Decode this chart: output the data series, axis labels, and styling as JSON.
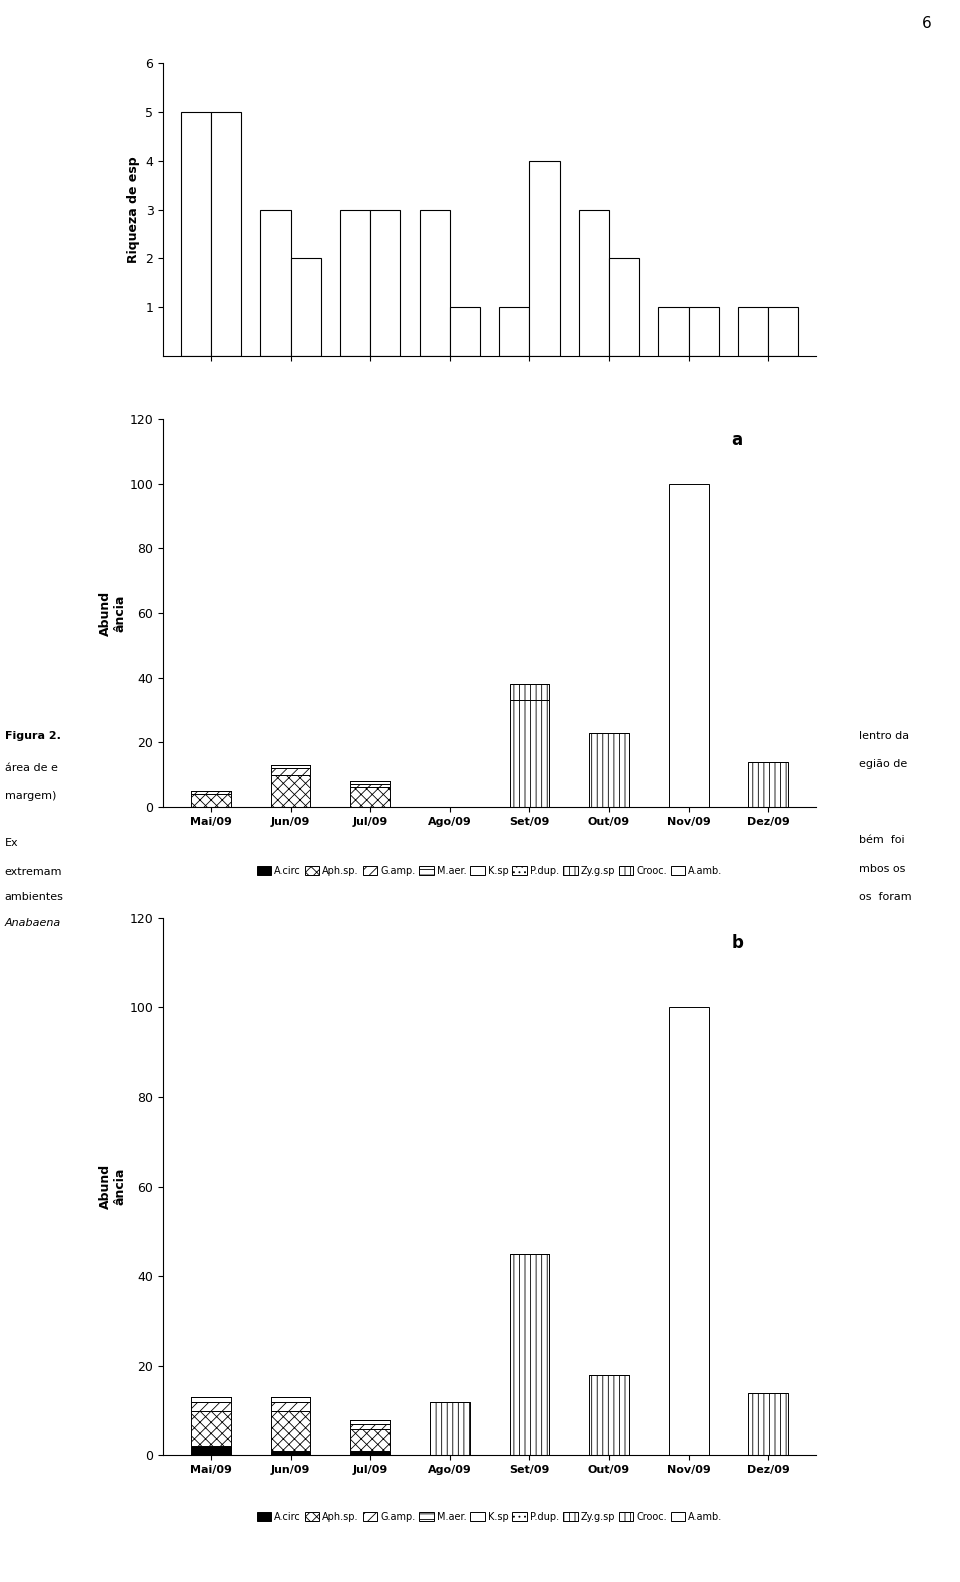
{
  "months": [
    "Mai/09",
    "Jun/09",
    "Jul/09",
    "Ago/09",
    "Set/09",
    "Out/09",
    "Nov/09",
    "Dez/09"
  ],
  "richness_hatched": [
    5,
    3,
    3,
    3,
    1,
    3,
    1,
    1
  ],
  "richness_plain": [
    5,
    2,
    3,
    1,
    4,
    2,
    1,
    1
  ],
  "abund_a": {
    "A.circ": [
      0,
      0,
      0,
      0,
      0,
      0,
      0,
      0
    ],
    "Aph.sp": [
      4,
      10,
      6,
      0,
      0,
      0,
      0,
      0
    ],
    "G.amp": [
      1,
      2,
      1,
      0,
      0,
      0,
      0,
      0
    ],
    "M.aer": [
      0,
      1,
      1,
      0,
      0,
      0,
      0,
      0
    ],
    "K.sp": [
      0,
      0,
      0,
      0,
      0,
      0,
      0,
      0
    ],
    "P.dup": [
      0,
      0,
      0,
      0,
      0,
      0,
      0,
      0
    ],
    "Zy.g.sp": [
      0,
      0,
      0,
      0,
      33,
      0,
      0,
      0
    ],
    "Crooc": [
      0,
      0,
      0,
      0,
      5,
      23,
      0,
      14
    ],
    "A.amb": [
      0,
      0,
      0,
      0,
      0,
      0,
      100,
      0
    ]
  },
  "abund_b": {
    "A.circ": [
      2,
      1,
      1,
      0,
      0,
      0,
      0,
      0
    ],
    "Aph.sp": [
      8,
      9,
      5,
      0,
      0,
      0,
      0,
      0
    ],
    "G.amp": [
      2,
      2,
      1,
      0,
      0,
      0,
      0,
      0
    ],
    "M.aer": [
      1,
      1,
      1,
      0,
      0,
      0,
      0,
      0
    ],
    "K.sp": [
      0,
      0,
      0,
      0,
      0,
      0,
      0,
      0
    ],
    "P.dup": [
      0,
      0,
      0,
      0,
      0,
      0,
      0,
      0
    ],
    "Zy.g.sp": [
      0,
      0,
      0,
      0,
      45,
      18,
      0,
      0
    ],
    "Crooc": [
      0,
      0,
      0,
      12,
      0,
      0,
      0,
      14
    ],
    "A.amb": [
      0,
      0,
      0,
      0,
      0,
      0,
      100,
      0
    ]
  },
  "ylabel_richness": "Riqueza de esp",
  "ylabel_abund_top": "Abund",
  "ylabel_abund_bot": "ância",
  "panel_a_label": "a",
  "panel_b_label": "b",
  "richness_ylim": [
    0,
    6
  ],
  "richness_yticks": [
    1,
    2,
    3,
    4,
    5,
    6
  ],
  "abund_ylim": [
    0,
    120
  ],
  "abund_yticks": [
    0,
    20,
    40,
    60,
    80,
    100,
    120
  ],
  "page_number": "6",
  "legend_labels": [
    "A.circ",
    "Aph.sp.",
    "G.amp.",
    "M.aer.",
    "K.sp",
    "P.dup.",
    "Zy.g.sp",
    "Crooc.",
    "A.amb."
  ]
}
